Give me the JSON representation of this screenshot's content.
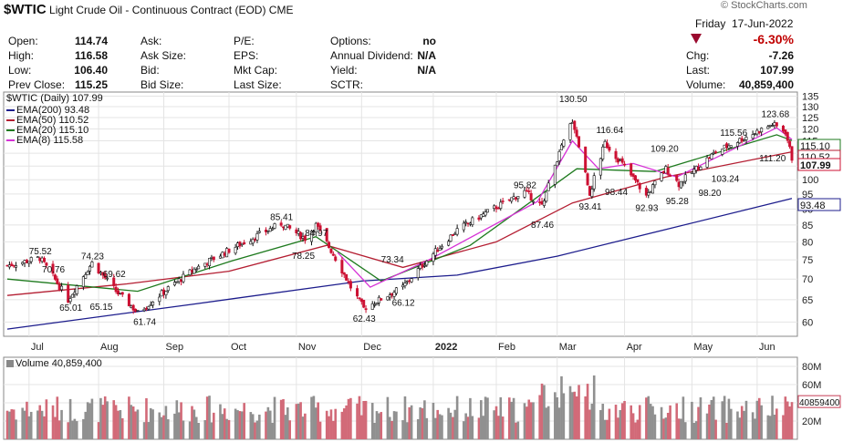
{
  "header": {
    "symbol": "$WTIC",
    "name": "Light Crude Oil - Continuous Contract (EOD)",
    "exchange": "CME",
    "brand": "© StockCharts.com",
    "day": "Friday",
    "date": "17-Jun-2022",
    "change_pct": "-6.30%"
  },
  "quote": {
    "rows": [
      [
        {
          "label": "Open:",
          "value": "114.74"
        },
        {
          "label": "Ask:",
          "value": ""
        },
        {
          "label": "P/E:",
          "value": ""
        },
        {
          "label": "Options:",
          "value": "no"
        },
        {
          "label": "Chg:",
          "value": "-7.26"
        }
      ],
      [
        {
          "label": "High:",
          "value": "116.58"
        },
        {
          "label": "Ask Size:",
          "value": ""
        },
        {
          "label": "EPS:",
          "value": ""
        },
        {
          "label": "Annual Dividend:",
          "value": "N/A"
        },
        {
          "label": "Last:",
          "value": "107.99"
        }
      ],
      [
        {
          "label": "Low:",
          "value": "106.40"
        },
        {
          "label": "Bid:",
          "value": ""
        },
        {
          "label": "Mkt Cap:",
          "value": ""
        },
        {
          "label": "Yield:",
          "value": "N/A"
        },
        {
          "label": "Volume:",
          "value": "40,859,400"
        }
      ],
      [
        {
          "label": "Prev Close:",
          "value": "115.25"
        },
        {
          "label": "Bid Size:",
          "value": ""
        },
        {
          "label": "Last Size:",
          "value": ""
        },
        {
          "label": "SCTR:",
          "value": ""
        }
      ]
    ]
  },
  "colors": {
    "ema200": "#1c1c8c",
    "ema50": "#b41e32",
    "ema20": "#1e7a1e",
    "ema8": "#d632d6",
    "up_candle": "#111111",
    "down_candle": "#cc1133",
    "vol_up": "#909090",
    "vol_down": "#d26a78"
  },
  "chart_data": [
    {
      "type": "candlestick",
      "title": "$WTIC (Daily) 107.99",
      "legend": [
        {
          "name": "EMA(200) 93.48"
        },
        {
          "name": "EMA(50) 110.52"
        },
        {
          "name": "EMA(20) 115.10"
        },
        {
          "name": "EMA(8) 115.58"
        }
      ],
      "y_ticks": [
        60,
        65,
        70,
        75,
        80,
        85,
        90,
        95,
        100,
        105,
        110,
        115,
        120,
        125,
        130,
        135
      ],
      "y_scale": "log",
      "ylim": [
        57,
        137
      ],
      "x_labels": [
        "Jul",
        "Aug",
        "Sep",
        "Oct",
        "Nov",
        "Dec",
        "2022",
        "Feb",
        "Mar",
        "Apr",
        "May",
        "Jun"
      ],
      "x_label_dates": [
        "2021-07-01",
        "2021-08-02",
        "2021-09-01",
        "2021-10-01",
        "2021-11-01",
        "2021-12-01",
        "2022-01-03",
        "2022-02-01",
        "2022-03-01",
        "2022-04-01",
        "2022-05-02",
        "2022-06-01"
      ],
      "date_range": [
        "2021-06-21",
        "2022-06-17"
      ],
      "price_path": [
        [
          "2021-06-21",
          73.5
        ],
        [
          "2021-07-06",
          75.5
        ],
        [
          "2021-07-19",
          65.0
        ],
        [
          "2021-07-30",
          74.2
        ],
        [
          "2021-08-10",
          67.0
        ],
        [
          "2021-08-20",
          62.0
        ],
        [
          "2021-09-15",
          72.5
        ],
        [
          "2021-10-25",
          85.4
        ],
        [
          "2021-11-05",
          81.0
        ],
        [
          "2021-11-10",
          84.97
        ],
        [
          "2021-11-26",
          68.0
        ],
        [
          "2021-12-02",
          63.0
        ],
        [
          "2021-12-20",
          68.0
        ],
        [
          "2022-01-14",
          83.5
        ],
        [
          "2022-02-14",
          95.8
        ],
        [
          "2022-02-22",
          91.0
        ],
        [
          "2022-03-08",
          124.0
        ],
        [
          "2022-03-16",
          95.0
        ],
        [
          "2022-03-23",
          114.0
        ],
        [
          "2022-04-11",
          94.3
        ],
        [
          "2022-04-20",
          104.0
        ],
        [
          "2022-04-26",
          98.5
        ],
        [
          "2022-05-13",
          110.5
        ],
        [
          "2022-06-08",
          122.0
        ],
        [
          "2022-06-14",
          118.9
        ],
        [
          "2022-06-17",
          107.99
        ]
      ],
      "ema": [
        {
          "name": "EMA(200)",
          "points": [
            [
              "2021-06-21",
              58.5
            ],
            [
              "2021-09-15",
              64.0
            ],
            [
              "2021-12-01",
              69.5
            ],
            [
              "2022-01-14",
              71.0
            ],
            [
              "2022-03-01",
              76.0
            ],
            [
              "2022-06-17",
              93.48
            ]
          ]
        },
        {
          "name": "EMA(50)",
          "points": [
            [
              "2021-06-21",
              66.0
            ],
            [
              "2021-08-15",
              68.8
            ],
            [
              "2021-10-01",
              72.0
            ],
            [
              "2021-11-15",
              79.0
            ],
            [
              "2021-12-20",
              73.0
            ],
            [
              "2022-02-01",
              80.0
            ],
            [
              "2022-03-08",
              92.0
            ],
            [
              "2022-04-20",
              101.0
            ],
            [
              "2022-06-17",
              110.52
            ]
          ]
        },
        {
          "name": "EMA(20)",
          "points": [
            [
              "2021-06-21",
              70.0
            ],
            [
              "2021-08-20",
              67.0
            ],
            [
              "2021-10-01",
              74.5
            ],
            [
              "2021-11-10",
              81.5
            ],
            [
              "2021-12-10",
              69.5
            ],
            [
              "2022-01-20",
              79.0
            ],
            [
              "2022-03-10",
              104.0
            ],
            [
              "2022-04-15",
              103.0
            ],
            [
              "2022-06-10",
              117.5
            ],
            [
              "2022-06-17",
              115.1
            ]
          ]
        },
        {
          "name": "EMA(8)",
          "points": [
            [
              "2021-11-20",
              77.0
            ],
            [
              "2021-12-05",
              68.0
            ],
            [
              "2022-01-01",
              75.0
            ],
            [
              "2022-02-20",
              92.5
            ],
            [
              "2022-03-08",
              115.0
            ],
            [
              "2022-03-20",
              104.0
            ],
            [
              "2022-04-05",
              106.0
            ],
            [
              "2022-04-25",
              101.0
            ],
            [
              "2022-06-10",
              120.5
            ],
            [
              "2022-06-17",
              115.58
            ]
          ]
        }
      ],
      "annotations": [
        {
          "date": "2021-07-06",
          "value": 75.52,
          "text": "75.52"
        },
        {
          "date": "2021-07-12",
          "value": 70.76,
          "text": "70.76"
        },
        {
          "date": "2021-07-20",
          "value": 65.01,
          "text": "65.01"
        },
        {
          "date": "2021-07-30",
          "value": 74.23,
          "text": "74.23"
        },
        {
          "date": "2021-08-09",
          "value": 69.62,
          "text": "69.62"
        },
        {
          "date": "2021-08-03",
          "value": 65.15,
          "text": "65.15"
        },
        {
          "date": "2021-08-23",
          "value": 61.74,
          "text": "61.74"
        },
        {
          "date": "2021-10-25",
          "value": 85.41,
          "text": "85.41"
        },
        {
          "date": "2021-11-10",
          "value": 84.97,
          "text": "84.97"
        },
        {
          "date": "2021-11-04",
          "value": 78.25,
          "text": "78.25"
        },
        {
          "date": "2021-12-02",
          "value": 62.43,
          "text": "62.43"
        },
        {
          "date": "2021-12-15",
          "value": 73.34,
          "text": "73.34"
        },
        {
          "date": "2021-12-20",
          "value": 66.12,
          "text": "66.12"
        },
        {
          "date": "2022-02-14",
          "value": 95.82,
          "text": "95.82"
        },
        {
          "date": "2022-02-22",
          "value": 87.46,
          "text": "87.46"
        },
        {
          "date": "2022-03-07",
          "value": 130.5,
          "text": "130.50"
        },
        {
          "date": "2022-03-16",
          "value": 93.41,
          "text": "93.41"
        },
        {
          "date": "2022-03-24",
          "value": 116.64,
          "text": "116.64"
        },
        {
          "date": "2022-03-28",
          "value": 98.44,
          "text": "98.44"
        },
        {
          "date": "2022-04-11",
          "value": 92.93,
          "text": "92.93"
        },
        {
          "date": "2022-04-18",
          "value": 109.2,
          "text": "109.20"
        },
        {
          "date": "2022-04-25",
          "value": 95.28,
          "text": "95.28"
        },
        {
          "date": "2022-05-10",
          "value": 98.2,
          "text": "98.20"
        },
        {
          "date": "2022-05-16",
          "value": 103.24,
          "text": "103.24"
        },
        {
          "date": "2022-05-20",
          "value": 115.56,
          "text": "115.56"
        },
        {
          "date": "2022-06-07",
          "value": 111.2,
          "text": "111.20"
        },
        {
          "date": "2022-06-08",
          "value": 123.68,
          "text": "123.68"
        }
      ],
      "right_tags": [
        {
          "text": "115.10",
          "value": 115.1,
          "color": "#1e7a1e"
        },
        {
          "text": "110.52",
          "value": 110.52,
          "color": "#b41e32"
        },
        {
          "text": "107.99",
          "value": 107.99,
          "color": "#cc1133"
        },
        {
          "text": "93.48",
          "value": 93.48,
          "color": "#1c1c8c"
        }
      ],
      "grid": true
    },
    {
      "type": "bar",
      "title": "Volume 40,859,400",
      "y_ticks": [
        "20M",
        "40M",
        "60M",
        "80M"
      ],
      "ylim": [
        0,
        90000000
      ],
      "last_value_tag": "40859400",
      "last_value": 40859400
    }
  ]
}
